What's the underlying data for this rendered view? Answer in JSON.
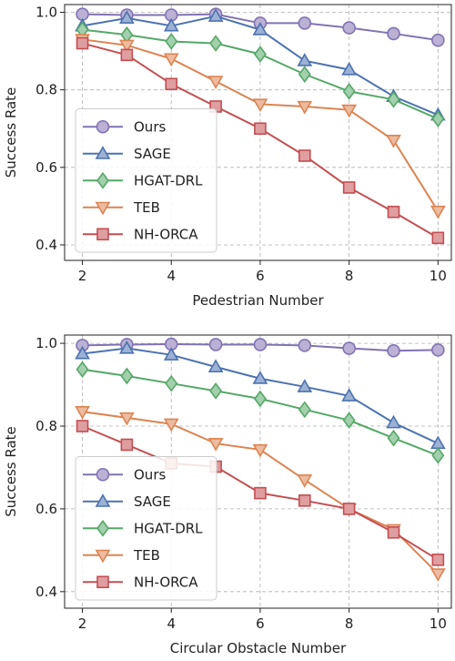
{
  "colors": {
    "Ours": "#8172b3",
    "SAGE": "#4c72b0",
    "HGAT-DRL": "#55a868",
    "TEB": "#dd8452",
    "NH-ORCA": "#c44e52"
  },
  "chart_data": [
    {
      "type": "line",
      "xlabel": "Pedestrian Number",
      "ylabel": "Success Rate",
      "x": [
        2,
        3,
        4,
        5,
        6,
        7,
        8,
        9,
        10
      ],
      "xticks": [
        "2",
        "4",
        "6",
        "8",
        "10"
      ],
      "yticks": [
        "0.4",
        "0.6",
        "0.8",
        "1.0"
      ],
      "xlim": [
        1.6,
        10.3
      ],
      "ylim": [
        0.36,
        1.02
      ],
      "grid": true,
      "legend": "lower-left",
      "series": [
        {
          "name": "Ours",
          "marker": "circle",
          "values": [
            0.995,
            0.993,
            0.993,
            0.995,
            0.972,
            0.972,
            0.96,
            0.945,
            0.928
          ]
        },
        {
          "name": "SAGE",
          "marker": "triangle-up",
          "values": [
            0.965,
            0.985,
            0.965,
            0.99,
            0.955,
            0.875,
            0.852,
            0.783,
            0.735
          ]
        },
        {
          "name": "HGAT-DRL",
          "marker": "diamond",
          "values": [
            0.955,
            0.942,
            0.925,
            0.92,
            0.892,
            0.84,
            0.796,
            0.775,
            0.725
          ]
        },
        {
          "name": "TEB",
          "marker": "triangle-down",
          "values": [
            0.93,
            0.915,
            0.88,
            0.822,
            0.763,
            0.757,
            0.748,
            0.67,
            0.487
          ]
        },
        {
          "name": "NH-ORCA",
          "marker": "square",
          "values": [
            0.92,
            0.89,
            0.815,
            0.757,
            0.7,
            0.63,
            0.548,
            0.485,
            0.418
          ]
        }
      ]
    },
    {
      "type": "line",
      "xlabel": "Circular Obstacle Number",
      "ylabel": "Success Rate",
      "x": [
        2,
        3,
        4,
        5,
        6,
        7,
        8,
        9,
        10
      ],
      "xticks": [
        "2",
        "4",
        "6",
        "8",
        "10"
      ],
      "yticks": [
        "0.4",
        "0.6",
        "0.8",
        "1.0"
      ],
      "xlim": [
        1.6,
        10.3
      ],
      "ylim": [
        0.36,
        1.02
      ],
      "grid": true,
      "legend": "lower-left",
      "series": [
        {
          "name": "Ours",
          "marker": "circle",
          "values": [
            0.995,
            0.997,
            0.998,
            0.997,
            0.997,
            0.995,
            0.988,
            0.982,
            0.984
          ]
        },
        {
          "name": "SAGE",
          "marker": "triangle-up",
          "values": [
            0.975,
            0.988,
            0.972,
            0.943,
            0.915,
            0.895,
            0.873,
            0.808,
            0.758
          ]
        },
        {
          "name": "HGAT-DRL",
          "marker": "diamond",
          "values": [
            0.937,
            0.921,
            0.903,
            0.885,
            0.866,
            0.84,
            0.814,
            0.771,
            0.729
          ]
        },
        {
          "name": "TEB",
          "marker": "triangle-down",
          "values": [
            0.835,
            0.82,
            0.805,
            0.758,
            0.743,
            0.67,
            0.6,
            0.55,
            0.443
          ]
        },
        {
          "name": "NH-ORCA",
          "marker": "square",
          "values": [
            0.8,
            0.755,
            0.71,
            0.702,
            0.638,
            0.62,
            0.6,
            0.543,
            0.477
          ]
        }
      ]
    }
  ]
}
